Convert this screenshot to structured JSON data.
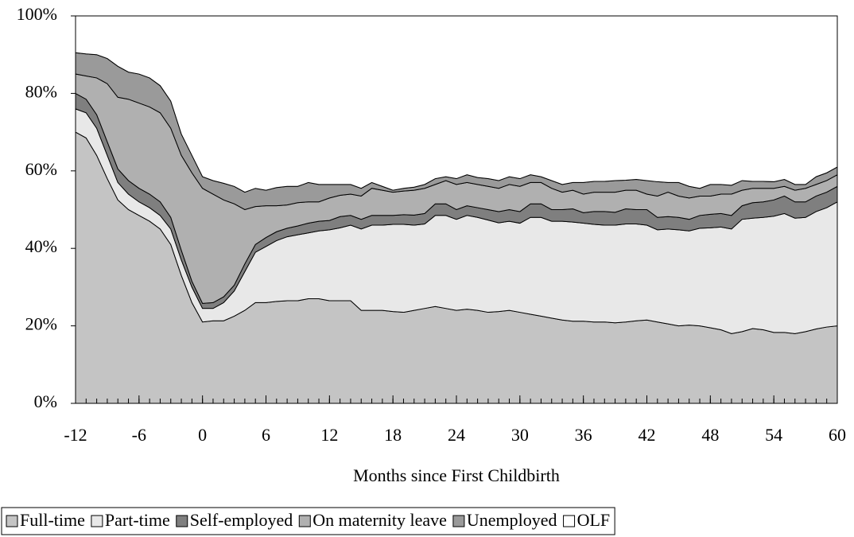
{
  "chart_data": {
    "type": "stacked-area",
    "x_label": "Months since First Childbirth",
    "x": [
      -12,
      -11,
      -10,
      -9,
      -8,
      -7,
      -6,
      -5,
      -4,
      -3,
      -2,
      -1,
      0,
      1,
      2,
      3,
      4,
      5,
      6,
      7,
      8,
      9,
      10,
      11,
      12,
      13,
      14,
      15,
      16,
      17,
      18,
      19,
      20,
      21,
      22,
      23,
      24,
      25,
      26,
      27,
      28,
      29,
      30,
      31,
      32,
      33,
      34,
      35,
      36,
      37,
      38,
      39,
      40,
      41,
      42,
      43,
      44,
      45,
      46,
      47,
      48,
      49,
      50,
      51,
      52,
      53,
      54,
      55,
      56,
      57,
      58,
      59,
      60
    ],
    "xlim": [
      -12,
      60
    ],
    "xticks": [
      -12,
      -6,
      0,
      6,
      12,
      18,
      24,
      30,
      36,
      42,
      48,
      54,
      60
    ],
    "ylim": [
      0,
      100
    ],
    "yticks": [
      {
        "value": 0,
        "label": "0%"
      },
      {
        "value": 20,
        "label": "20%"
      },
      {
        "value": 40,
        "label": "40%"
      },
      {
        "value": 60,
        "label": "60%"
      },
      {
        "value": 80,
        "label": "80%"
      },
      {
        "value": 100,
        "label": "100%"
      }
    ],
    "series": [
      {
        "name": "Full-time",
        "color": "#c4c4c4",
        "values": [
          70,
          68.5,
          64,
          58,
          52.5,
          50,
          48.5,
          47,
          45,
          41,
          33,
          26,
          21,
          21.3,
          21.3,
          22.5,
          24,
          26,
          26,
          26.3,
          26.5,
          26.5,
          27,
          27,
          26.5,
          26.5,
          26.5,
          24,
          24,
          24,
          23.7,
          23.5,
          24,
          24.5,
          25,
          24.5,
          24,
          24.3,
          24,
          23.5,
          23.7,
          24,
          23.5,
          23,
          22.5,
          22,
          21.5,
          21.2,
          21.2,
          21,
          21,
          20.8,
          21,
          21.3,
          21.5,
          21,
          20.5,
          20,
          20.2,
          20,
          19.5,
          19,
          18,
          18.5,
          19.3,
          19,
          18.3,
          18.3,
          18,
          18.5,
          19.2,
          19.7,
          20
        ]
      },
      {
        "name": "Part-time",
        "color": "#e8e8e8",
        "values": [
          6,
          6.5,
          7,
          6,
          4.5,
          4,
          3.5,
          3.5,
          3.5,
          4,
          4,
          4,
          3.5,
          3.2,
          4.7,
          6.5,
          10,
          13,
          14.5,
          15.7,
          16.5,
          17,
          17,
          17.5,
          18.3,
          18.8,
          19.5,
          21,
          22,
          22,
          22.5,
          22.7,
          22,
          21.8,
          23.5,
          24,
          23.5,
          24.2,
          24,
          23.8,
          22.9,
          23,
          23,
          25,
          25.5,
          25,
          25.5,
          25.6,
          25.3,
          25.2,
          25,
          25.2,
          25.3,
          25,
          24.5,
          23.8,
          24.5,
          24.8,
          24.3,
          25.2,
          25.8,
          26.5,
          27,
          29,
          28.5,
          29,
          30,
          30.7,
          29.8,
          29.5,
          30.3,
          30.8,
          32
        ]
      },
      {
        "name": "Self-employed",
        "color": "#7f7f7f",
        "values": [
          4,
          3.5,
          3.5,
          3.5,
          3.5,
          3.5,
          3.5,
          3.5,
          3.5,
          3,
          2.5,
          1.5,
          1.3,
          1.5,
          1.5,
          1.5,
          2,
          2,
          2.3,
          2.3,
          2.2,
          2.3,
          2.5,
          2.5,
          2.4,
          2.9,
          2.5,
          2.5,
          2.5,
          2.5,
          2.3,
          2.5,
          2.6,
          2.7,
          3,
          3,
          2.5,
          2.5,
          2.5,
          2.7,
          2.9,
          3,
          3,
          3.5,
          3.5,
          3,
          3,
          3.4,
          2.7,
          3.3,
          3.5,
          3.3,
          3.9,
          3.7,
          4,
          3.2,
          3.2,
          3.2,
          3,
          3.3,
          3.5,
          3.5,
          3.5,
          3.5,
          4,
          4,
          4.2,
          4.5,
          4.2,
          4,
          4,
          4,
          4
        ]
      },
      {
        "name": "On maternity leave",
        "color": "#b0b0b0",
        "values": [
          5,
          6,
          9.5,
          15,
          18.5,
          21,
          22,
          22.5,
          23,
          23,
          24.5,
          28,
          29.7,
          28,
          25,
          21,
          14,
          9.8,
          8.2,
          6.7,
          6,
          6,
          5.5,
          5,
          5.8,
          5.5,
          5.5,
          6,
          7,
          6.5,
          6,
          6.1,
          6.4,
          6.5,
          5,
          6,
          6.5,
          6,
          6,
          6,
          6,
          6.5,
          6.5,
          5.5,
          5.5,
          5.5,
          4.5,
          4.8,
          4.8,
          5,
          5,
          5.2,
          4.8,
          5,
          4,
          5.5,
          6.3,
          5.5,
          5.5,
          5,
          4.7,
          5,
          5.5,
          4,
          3.7,
          3.5,
          3,
          2.5,
          3,
          3.5,
          3,
          3,
          3
        ]
      },
      {
        "name": "Unemployed",
        "color": "#9a9a9a",
        "values": [
          5.5,
          5.7,
          6,
          6.5,
          8,
          7,
          7.5,
          7.5,
          7,
          7,
          5.5,
          4.5,
          3,
          3.5,
          4.3,
          4.5,
          4.5,
          4.7,
          4,
          4.7,
          4.8,
          4.2,
          5,
          4.5,
          3.5,
          2.8,
          2.5,
          2,
          1.5,
          1,
          0.5,
          0.7,
          0.8,
          1,
          1.5,
          1,
          1.5,
          2,
          1.8,
          2,
          2,
          2,
          2,
          2,
          1.5,
          2,
          2,
          2,
          3,
          2.8,
          2.8,
          3,
          2.6,
          2.8,
          3.5,
          3.7,
          2.5,
          3.5,
          3,
          2,
          3,
          2.5,
          2.3,
          2.5,
          1.8,
          1.8,
          1.7,
          1.8,
          1.5,
          1,
          2,
          2,
          2
        ]
      },
      {
        "name": "OLF",
        "color": "#ffffff",
        "values": [
          9.5,
          9.8,
          10,
          11,
          13,
          14.5,
          15,
          16,
          18,
          22,
          30.5,
          36,
          41.5,
          42.5,
          43.2,
          44,
          45.5,
          44.5,
          45,
          44.3,
          44,
          44,
          43,
          43.5,
          43.5,
          43.5,
          43.5,
          44.5,
          43,
          44,
          45,
          44.5,
          44.2,
          43.5,
          42,
          41.5,
          42,
          41,
          41.7,
          42,
          42.5,
          41.5,
          42,
          41,
          41.5,
          42.5,
          43.5,
          43,
          43,
          42.7,
          42.7,
          42.5,
          42.4,
          42.2,
          42.5,
          42.8,
          43,
          43,
          44,
          44.5,
          43.5,
          43.5,
          43.7,
          42.5,
          42.7,
          42.7,
          42.8,
          42.2,
          43.5,
          43.5,
          41.5,
          40.5,
          39
        ]
      }
    ]
  }
}
